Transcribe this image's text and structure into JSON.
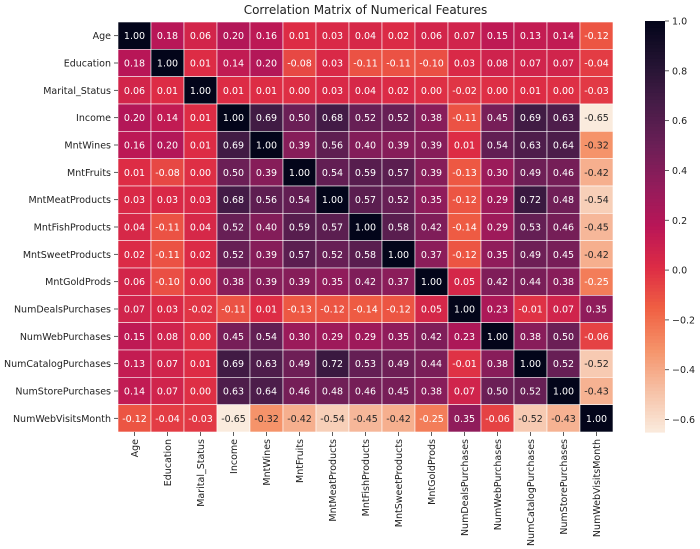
{
  "chart_data": {
    "type": "heatmap",
    "title": "Correlation Matrix of Numerical Features",
    "labels": [
      "Age",
      "Education",
      "Marital_Status",
      "Income",
      "MntWines",
      "MntFruits",
      "MntMeatProducts",
      "MntFishProducts",
      "MntSweetProducts",
      "MntGoldProds",
      "NumDealsPurchases",
      "NumWebPurchases",
      "NumCatalogPurchases",
      "NumStorePurchases",
      "NumWebVisitsMonth"
    ],
    "matrix": [
      [
        1.0,
        0.18,
        0.06,
        0.2,
        0.16,
        0.01,
        0.03,
        0.04,
        0.02,
        0.06,
        0.07,
        0.15,
        0.13,
        0.14,
        -0.12
      ],
      [
        0.18,
        1.0,
        0.01,
        0.14,
        0.2,
        -0.08,
        0.03,
        -0.11,
        -0.11,
        -0.1,
        0.03,
        0.08,
        0.07,
        0.07,
        -0.04
      ],
      [
        0.06,
        0.01,
        1.0,
        0.01,
        0.01,
        -0.0,
        0.03,
        0.04,
        0.02,
        0.0,
        -0.02,
        -0.0,
        0.01,
        0.0,
        -0.03
      ],
      [
        0.2,
        0.14,
        0.01,
        1.0,
        0.69,
        0.5,
        0.68,
        0.52,
        0.52,
        0.38,
        -0.11,
        0.45,
        0.69,
        0.63,
        -0.65
      ],
      [
        0.16,
        0.2,
        0.01,
        0.69,
        1.0,
        0.39,
        0.56,
        0.4,
        0.39,
        0.39,
        0.01,
        0.54,
        0.63,
        0.64,
        -0.32
      ],
      [
        0.01,
        -0.08,
        -0.0,
        0.5,
        0.39,
        1.0,
        0.54,
        0.59,
        0.57,
        0.39,
        -0.13,
        0.3,
        0.49,
        0.46,
        -0.42
      ],
      [
        0.03,
        0.03,
        0.03,
        0.68,
        0.56,
        0.54,
        1.0,
        0.57,
        0.52,
        0.35,
        -0.12,
        0.29,
        0.72,
        0.48,
        -0.54
      ],
      [
        0.04,
        -0.11,
        0.04,
        0.52,
        0.4,
        0.59,
        0.57,
        1.0,
        0.58,
        0.42,
        -0.14,
        0.29,
        0.53,
        0.46,
        -0.45
      ],
      [
        0.02,
        -0.11,
        0.02,
        0.52,
        0.39,
        0.57,
        0.52,
        0.58,
        1.0,
        0.37,
        -0.12,
        0.35,
        0.49,
        0.45,
        -0.42
      ],
      [
        0.06,
        -0.1,
        0.0,
        0.38,
        0.39,
        0.39,
        0.35,
        0.42,
        0.37,
        1.0,
        0.05,
        0.42,
        0.44,
        0.38,
        -0.25
      ],
      [
        0.07,
        0.03,
        -0.02,
        -0.11,
        0.01,
        -0.13,
        -0.12,
        -0.14,
        -0.12,
        0.05,
        1.0,
        0.23,
        -0.01,
        0.07,
        0.35
      ],
      [
        0.15,
        0.08,
        -0.0,
        0.45,
        0.54,
        0.3,
        0.29,
        0.29,
        0.35,
        0.42,
        0.23,
        1.0,
        0.38,
        0.5,
        -0.06
      ],
      [
        0.13,
        0.07,
        0.01,
        0.69,
        0.63,
        0.49,
        0.72,
        0.53,
        0.49,
        0.44,
        -0.01,
        0.38,
        1.0,
        0.52,
        -0.52
      ],
      [
        0.14,
        0.07,
        0.0,
        0.63,
        0.64,
        0.46,
        0.48,
        0.46,
        0.45,
        0.38,
        0.07,
        0.5,
        0.52,
        1.0,
        -0.43
      ],
      [
        -0.12,
        -0.04,
        -0.03,
        -0.65,
        -0.32,
        -0.42,
        -0.54,
        -0.45,
        -0.42,
        -0.25,
        0.35,
        -0.06,
        -0.52,
        -0.43,
        1.0
      ]
    ],
    "colorbar": {
      "range": [
        -0.65,
        1.0
      ],
      "ticks": [
        "1.0",
        "0.8",
        "0.6",
        "0.4",
        "0.2",
        "0.0",
        "−0.2",
        "−0.4",
        "−0.6"
      ],
      "tick_values": [
        1.0,
        0.8,
        0.6,
        0.4,
        0.2,
        0.0,
        -0.2,
        -0.4,
        -0.6
      ],
      "colormap": "rocket_r"
    },
    "annotations": "2 decimals"
  }
}
